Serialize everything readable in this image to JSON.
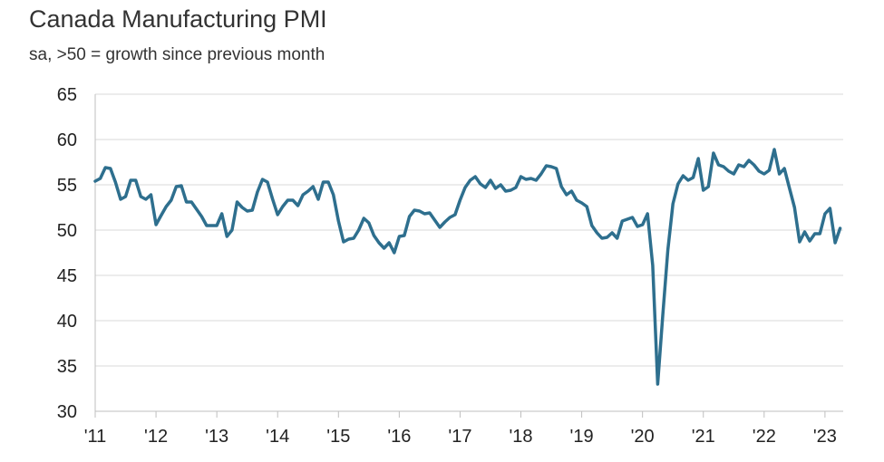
{
  "chart_data": {
    "type": "line",
    "title": "Canada Manufacturing PMI",
    "subtitle": "sa, >50 = growth since previous month",
    "xlabel": "",
    "ylabel": "",
    "ylim": [
      30,
      65
    ],
    "yticks": [
      30,
      35,
      40,
      45,
      50,
      55,
      60,
      65
    ],
    "xticks": [
      {
        "label": "'11",
        "value": 2011.0
      },
      {
        "label": "'12",
        "value": 2012.0
      },
      {
        "label": "'13",
        "value": 2013.0
      },
      {
        "label": "'14",
        "value": 2014.0
      },
      {
        "label": "'15",
        "value": 2015.0
      },
      {
        "label": "'16",
        "value": 2016.0
      },
      {
        "label": "'17",
        "value": 2017.0
      },
      {
        "label": "'18",
        "value": 2018.0
      },
      {
        "label": "'19",
        "value": 2019.0
      },
      {
        "label": "'20",
        "value": 2020.0
      },
      {
        "label": "'21",
        "value": 2021.0
      },
      {
        "label": "'22",
        "value": 2022.0
      },
      {
        "label": "'23",
        "value": 2023.0
      }
    ],
    "xlim": [
      2011.0,
      2023.3
    ],
    "grid": {
      "horizontal": true,
      "vertical": false
    },
    "colors": {
      "line": "#2e6f8e",
      "grid": "#d9d9d9",
      "axis": "#bfbfbf"
    },
    "series": [
      {
        "x": [
          2011.0,
          2011.083,
          2011.167,
          2011.25,
          2011.333,
          2011.417,
          2011.5,
          2011.583,
          2011.667,
          2011.75,
          2011.833,
          2011.917,
          2012.0,
          2012.083,
          2012.167,
          2012.25,
          2012.333,
          2012.417,
          2012.5,
          2012.583,
          2012.667,
          2012.75,
          2012.833,
          2012.917,
          2013.0,
          2013.083,
          2013.167,
          2013.25,
          2013.333,
          2013.417,
          2013.5,
          2013.583,
          2013.667,
          2013.75,
          2013.833,
          2013.917,
          2014.0,
          2014.083,
          2014.167,
          2014.25,
          2014.333,
          2014.417,
          2014.5,
          2014.583,
          2014.667,
          2014.75,
          2014.833,
          2014.917,
          2015.0,
          2015.083,
          2015.167,
          2015.25,
          2015.333,
          2015.417,
          2015.5,
          2015.583,
          2015.667,
          2015.75,
          2015.833,
          2015.917,
          2016.0,
          2016.083,
          2016.167,
          2016.25,
          2016.333,
          2016.417,
          2016.5,
          2016.583,
          2016.667,
          2016.75,
          2016.833,
          2016.917,
          2017.0,
          2017.083,
          2017.167,
          2017.25,
          2017.333,
          2017.417,
          2017.5,
          2017.583,
          2017.667,
          2017.75,
          2017.833,
          2017.917,
          2018.0,
          2018.083,
          2018.167,
          2018.25,
          2018.333,
          2018.417,
          2018.5,
          2018.583,
          2018.667,
          2018.75,
          2018.833,
          2018.917,
          2019.0,
          2019.083,
          2019.167,
          2019.25,
          2019.333,
          2019.417,
          2019.5,
          2019.583,
          2019.667,
          2019.75,
          2019.833,
          2019.917,
          2020.0,
          2020.083,
          2020.167,
          2020.25,
          2020.333,
          2020.417,
          2020.5,
          2020.583,
          2020.667,
          2020.75,
          2020.833,
          2020.917,
          2021.0,
          2021.083,
          2021.167,
          2021.25,
          2021.333,
          2021.417,
          2021.5,
          2021.583,
          2021.667,
          2021.75,
          2021.833,
          2021.917,
          2022.0,
          2022.083,
          2022.167,
          2022.25,
          2022.333,
          2022.417,
          2022.5,
          2022.583,
          2022.667,
          2022.75,
          2022.833,
          2022.917,
          2023.0,
          2023.083,
          2023.167,
          2023.25
        ],
        "values": [
          55.4,
          55.7,
          56.9,
          56.8,
          55.3,
          53.4,
          53.7,
          55.5,
          55.5,
          53.7,
          53.4,
          53.9,
          50.6,
          51.6,
          52.6,
          53.3,
          54.8,
          54.9,
          53.1,
          53.1,
          52.3,
          51.5,
          50.5,
          50.5,
          50.5,
          51.8,
          49.3,
          50.0,
          53.1,
          52.5,
          52.1,
          52.2,
          54.2,
          55.6,
          55.3,
          53.4,
          51.7,
          52.6,
          53.3,
          53.3,
          52.7,
          53.9,
          54.3,
          54.8,
          53.4,
          55.3,
          55.3,
          53.9,
          51.0,
          48.7,
          49.0,
          49.1,
          50.0,
          51.3,
          50.8,
          49.4,
          48.6,
          48.0,
          48.6,
          47.5,
          49.3,
          49.4,
          51.5,
          52.2,
          52.1,
          51.8,
          51.9,
          51.1,
          50.3,
          50.9,
          51.4,
          51.7,
          53.3,
          54.7,
          55.5,
          55.9,
          55.1,
          54.7,
          55.5,
          54.6,
          55.0,
          54.3,
          54.4,
          54.7,
          55.9,
          55.6,
          55.7,
          55.5,
          56.2,
          57.1,
          57.0,
          56.8,
          54.8,
          53.9,
          54.3,
          53.3,
          53.0,
          52.6,
          50.5,
          49.7,
          49.1,
          49.2,
          49.7,
          49.1,
          51.0,
          51.2,
          51.4,
          50.4,
          50.6,
          51.8,
          46.1,
          33.0,
          40.6,
          47.8,
          52.9,
          55.1,
          56.0,
          55.5,
          55.8,
          57.9,
          54.4,
          54.8,
          58.5,
          57.2,
          57.0,
          56.5,
          56.2,
          57.2,
          57.0,
          57.7,
          57.2,
          56.5,
          56.2,
          56.6,
          58.9,
          56.2,
          56.8,
          54.6,
          52.5,
          48.7,
          49.8,
          48.8,
          49.6,
          49.6,
          51.8,
          52.4,
          48.6,
          50.2
        ]
      }
    ]
  }
}
